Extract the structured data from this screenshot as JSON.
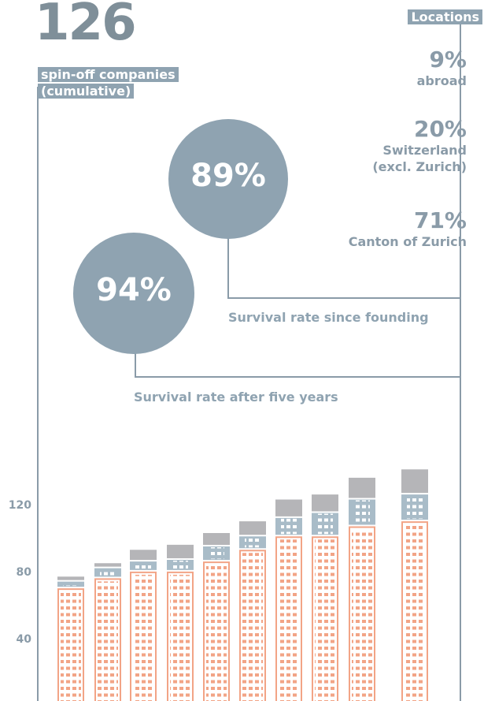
{
  "header": {
    "total": "126",
    "total_label": "spin-off companies (cumulative)"
  },
  "locations": {
    "title": "Locations",
    "items": [
      {
        "share": "9%",
        "name": "abroad"
      },
      {
        "share": "20%",
        "name": "Switzerland (excl. Zurich)"
      },
      {
        "share": "71%",
        "name": "Canton of Zurich"
      }
    ]
  },
  "survival": [
    {
      "rate": "89%",
      "label": "Survival rate since founding"
    },
    {
      "rate": "94%",
      "label": "Survival rate after five years"
    }
  ],
  "chart_data": {
    "type": "bar",
    "stacked": true,
    "categories": [
      null,
      null,
      null,
      null,
      null,
      null,
      null,
      null,
      null,
      null
    ],
    "series": [
      {
        "name": "Canton of Zurich",
        "color": "#f2a486",
        "values": [
          71,
          77,
          81,
          81,
          87,
          94,
          102,
          102,
          108,
          111
        ]
      },
      {
        "name": "Switzerland (excl. Zurich)",
        "color": "#a9bcc8",
        "values": [
          4,
          6,
          6,
          7,
          9,
          8,
          11,
          14,
          16,
          16
        ]
      },
      {
        "name": "abroad",
        "color": "#b5b5b8",
        "values": [
          3,
          3,
          7,
          9,
          8,
          9,
          11,
          11,
          13,
          15
        ]
      }
    ],
    "ylim": [
      0,
      150
    ],
    "yticks": [
      40,
      80,
      120
    ]
  }
}
